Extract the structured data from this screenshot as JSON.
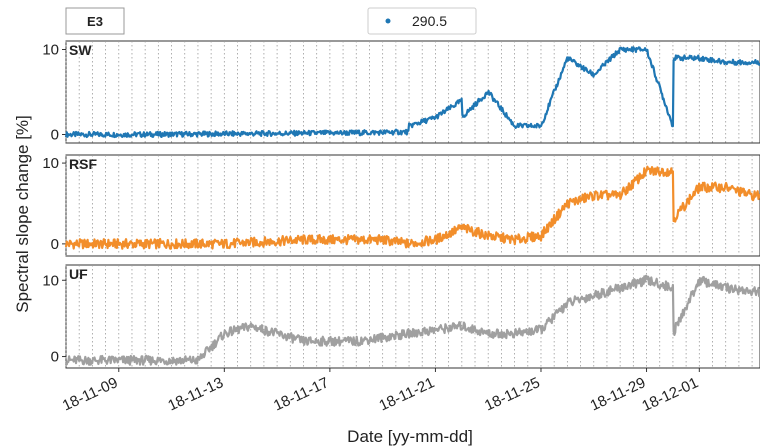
{
  "station_label": "E3",
  "legend": {
    "label": "290.5",
    "color": "#1f77b4"
  },
  "chart_data": {
    "type": "line",
    "xlabel": "Date [yy-mm-dd]",
    "ylabel": "Spectral slope change [%]",
    "x_range": [
      "18-11-07",
      "18-12-03"
    ],
    "xtick_labels": [
      "18-11-09",
      "18-11-13",
      "18-11-17",
      "18-11-21",
      "18-11-25",
      "18-11-29",
      "18-12-01"
    ],
    "xtick_dates": [
      "18-11-09",
      "18-11-13",
      "18-11-17",
      "18-11-21",
      "18-11-25",
      "18-11-29",
      "18-12-01"
    ],
    "vertical_gridlines": "dotted, every 12 hours",
    "x_scale_days_shown": 26.3,
    "panels": [
      {
        "name": "SW",
        "color": "#1f77b4",
        "ylim": [
          -1,
          11
        ],
        "yticks": [
          0,
          10
        ],
        "x": [
          "18-11-07",
          "18-11-10",
          "18-11-14",
          "18-11-18",
          "18-11-20",
          "18-11-20",
          "18-11-21",
          "18-11-22",
          "18-11-22",
          "18-11-23",
          "18-11-24",
          "18-11-25",
          "18-11-26",
          "18-11-27",
          "18-11-28",
          "18-11-29",
          "18-11-30",
          "18-11-30",
          "18-12-01",
          "18-12-02",
          "18-12-03"
        ],
        "values": [
          0,
          0,
          0.1,
          0.2,
          0.3,
          1,
          2,
          4,
          2,
          5,
          1,
          1,
          9,
          7,
          10,
          10,
          1,
          9,
          9,
          8.5,
          8.5
        ]
      },
      {
        "name": "RSF",
        "color": "#f28e2b",
        "ylim": [
          -1.5,
          11
        ],
        "yticks": [
          0,
          10
        ],
        "x": [
          "18-11-07",
          "18-11-10",
          "18-11-13",
          "18-11-16",
          "18-11-19",
          "18-11-20",
          "18-11-21",
          "18-11-22",
          "18-11-23",
          "18-11-24",
          "18-11-25",
          "18-11-26",
          "18-11-27",
          "18-11-28",
          "18-11-29",
          "18-11-30",
          "18-11-30",
          "18-12-01",
          "18-12-02",
          "18-12-03"
        ],
        "values": [
          0,
          0,
          0,
          0.5,
          0.5,
          0,
          0.5,
          2,
          1,
          0.5,
          1,
          5,
          6,
          6,
          9,
          9,
          3,
          7,
          7,
          6
        ]
      },
      {
        "name": "UF",
        "color": "#a0a0a0",
        "ylim": [
          -1.5,
          12
        ],
        "yticks": [
          0,
          10
        ],
        "x": [
          "18-11-07",
          "18-11-10",
          "18-11-12",
          "18-11-13",
          "18-11-14",
          "18-11-15",
          "18-11-16",
          "18-11-18",
          "18-11-20",
          "18-11-21",
          "18-11-22",
          "18-11-23",
          "18-11-24",
          "18-11-25",
          "18-11-26",
          "18-11-27",
          "18-11-28",
          "18-11-29",
          "18-11-30",
          "18-11-30",
          "18-12-01",
          "18-12-02",
          "18-12-03"
        ],
        "values": [
          -0.5,
          -0.5,
          -0.5,
          3,
          4,
          3,
          2,
          2,
          3,
          3.5,
          4,
          3,
          3,
          3.5,
          7,
          8,
          9,
          10,
          9,
          3,
          10,
          9,
          8.5
        ]
      }
    ]
  }
}
